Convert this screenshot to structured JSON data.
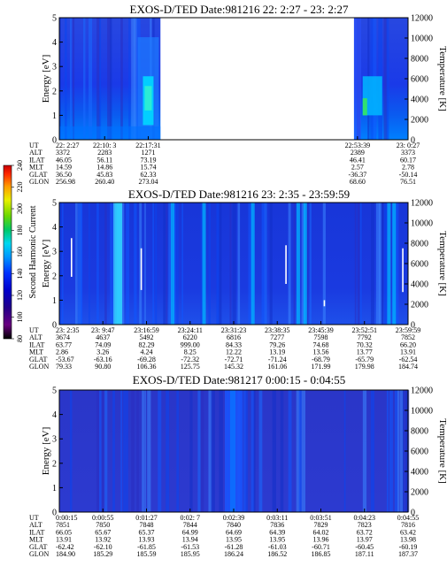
{
  "chart_data": [
    {
      "type": "heatmap",
      "title": "EXOS-D/TED   Date:981216  22: 2:27 - 23: 2:27",
      "ylabel": "Energy [eV]",
      "y2label": "Temperature [K]",
      "ylim": [
        0,
        5
      ],
      "y2lim": [
        0,
        12000
      ],
      "yticks": [
        "0",
        "1",
        "2",
        "3",
        "4",
        "5"
      ],
      "y2ticks": [
        "0",
        "2000",
        "4000",
        "6000",
        "8000",
        "10000",
        "12000"
      ],
      "data_gap": "no data between 22:27:04 and 22:53:39",
      "ephemeris_labels": [
        "UT",
        "ALT",
        "ILAT",
        "MLT",
        "GLAT",
        "GLON"
      ],
      "ephemeris_columns": [
        {
          "pos": 0.0,
          "UT": "22: 2:27",
          "ALT": "3372",
          "ILAT": "46.05",
          "MLT": "14.59",
          "GLAT": "36.50",
          "GLON": "256.98"
        },
        {
          "pos": 0.13,
          "UT": "22:10: 3",
          "ALT": "2283",
          "ILAT": "56.11",
          "MLT": "14.86",
          "GLAT": "45.83",
          "GLON": "260.40"
        },
        {
          "pos": 0.255,
          "UT": "22:17:31",
          "ALT": "1271",
          "ILAT": "73.19",
          "MLT": "15.74",
          "GLAT": "62.33",
          "GLON": "273.04"
        },
        {
          "pos": 0.855,
          "UT": "22:53:39",
          "ALT": "2389",
          "ILAT": "46.41",
          "MLT": "2.57",
          "GLAT": "-36.37",
          "GLON": "68.60"
        },
        {
          "pos": 1.0,
          "UT": "23: 0:27",
          "ALT": "3373",
          "ILAT": "60.17",
          "MLT": "2.78",
          "GLAT": "-50.14",
          "GLON": "76.51"
        }
      ],
      "data_segments": [
        {
          "from": 0.0,
          "to": 0.29
        },
        {
          "from": 0.845,
          "to": 1.0
        }
      ],
      "energy_profile": "intensity highest below 2 eV, enhanced patches near 1-2.5 eV around 22:17 and 22:58"
    },
    {
      "type": "heatmap",
      "title": "EXOS-D/TED   Date:981216  23: 2:35 - 23:59:59",
      "ylabel": "Energy [eV]",
      "y2label": "Temperature [K]",
      "ylim": [
        0,
        5
      ],
      "y2lim": [
        0,
        12000
      ],
      "yticks": [
        "0",
        "1",
        "2",
        "3",
        "4",
        "5"
      ],
      "y2ticks": [
        "0",
        "2000",
        "4000",
        "6000",
        "8000",
        "10000",
        "12000"
      ],
      "ephemeris_labels": [
        "UT",
        "ALT",
        "ILAT",
        "MLT",
        "GLAT",
        "GLON"
      ],
      "ephemeris_columns": [
        {
          "pos": 0.0,
          "UT": "23: 2:35",
          "ALT": "3674",
          "ILAT": "63.77",
          "MLT": "2.86",
          "GLAT": "-53.67",
          "GLON": "79.33"
        },
        {
          "pos": 0.125,
          "UT": "23: 9:47",
          "ALT": "4637",
          "ILAT": "74.09",
          "MLT": "3.26",
          "GLAT": "-63.16",
          "GLON": "90.80"
        },
        {
          "pos": 0.25,
          "UT": "23:16:59",
          "ALT": "5492",
          "ILAT": "82.29",
          "MLT": "4.24",
          "GLAT": "-69.28",
          "GLON": "106.36"
        },
        {
          "pos": 0.375,
          "UT": "23:24:11",
          "ALT": "6220",
          "ILAT": "999.00",
          "MLT": "8.25",
          "GLAT": "-72.32",
          "GLON": "125.75"
        },
        {
          "pos": 0.5,
          "UT": "23:31:23",
          "ALT": "6816",
          "ILAT": "84.33",
          "MLT": "12.22",
          "GLAT": "-72.71",
          "GLON": "145.32"
        },
        {
          "pos": 0.625,
          "UT": "23:38:35",
          "ALT": "7277",
          "ILAT": "79.26",
          "MLT": "13.19",
          "GLAT": "-71.24",
          "GLON": "161.06"
        },
        {
          "pos": 0.75,
          "UT": "23:45:39",
          "ALT": "7598",
          "ILAT": "74.68",
          "MLT": "13.56",
          "GLAT": "-68.79",
          "GLON": "171.99"
        },
        {
          "pos": 0.875,
          "UT": "23:52:51",
          "ALT": "7792",
          "ILAT": "70.32",
          "MLT": "13.77",
          "GLAT": "-65.79",
          "GLON": "179.98"
        },
        {
          "pos": 1.0,
          "UT": "23:59:59",
          "ALT": "7852",
          "ILAT": "66.20",
          "MLT": "13.91",
          "GLAT": "-62.54",
          "GLON": "184.74"
        }
      ],
      "temperature_markers": [
        {
          "pos": 0.035,
          "from_k": 4700,
          "to_k": 8500
        },
        {
          "pos": 0.235,
          "from_k": 3400,
          "to_k": 7500
        },
        {
          "pos": 0.65,
          "from_k": 4000,
          "to_k": 7800
        },
        {
          "pos": 0.76,
          "from_k": 1800,
          "to_k": 2400
        },
        {
          "pos": 0.985,
          "from_k": 3200,
          "to_k": 7500
        }
      ]
    },
    {
      "type": "heatmap",
      "title": "EXOS-D/TED   Date:981217  0:00:15 - 0:04:55",
      "ylabel": "Energy [eV]",
      "y2label": "Temperature [K]",
      "ylim": [
        0,
        5
      ],
      "y2lim": [
        0,
        12000
      ],
      "yticks": [
        "0",
        "1",
        "2",
        "3",
        "4",
        "5"
      ],
      "y2ticks": [
        "0",
        "2000",
        "4000",
        "6000",
        "8000",
        "10000",
        "12000"
      ],
      "ephemeris_labels": [
        "UT",
        "ALT",
        "ILAT",
        "MLT",
        "GLAT",
        "GLON"
      ],
      "ephemeris_columns": [
        {
          "pos": 0.0,
          "UT": "0:00:15",
          "ALT": "7851",
          "ILAT": "66.05",
          "MLT": "13.91",
          "GLAT": "-62.42",
          "GLON": "184.90"
        },
        {
          "pos": 0.125,
          "UT": "0:00:55",
          "ALT": "7850",
          "ILAT": "65.67",
          "MLT": "13.92",
          "GLAT": "-62.10",
          "GLON": "185.29"
        },
        {
          "pos": 0.25,
          "UT": "0:01:27",
          "ALT": "7848",
          "ILAT": "65.37",
          "MLT": "13.93",
          "GLAT": "-61.85",
          "GLON": "185.59"
        },
        {
          "pos": 0.375,
          "UT": "0:02: 7",
          "ALT": "7844",
          "ILAT": "64.99",
          "MLT": "13.94",
          "GLAT": "-61.53",
          "GLON": "185.95"
        },
        {
          "pos": 0.5,
          "UT": "0:02:39",
          "ALT": "7840",
          "ILAT": "64.69",
          "MLT": "13.95",
          "GLAT": "-61.28",
          "GLON": "186.24"
        },
        {
          "pos": 0.625,
          "UT": "0:03:11",
          "ALT": "7836",
          "ILAT": "64.39",
          "MLT": "13.95",
          "GLAT": "-61.03",
          "GLON": "186.52"
        },
        {
          "pos": 0.75,
          "UT": "0:03:51",
          "ALT": "7829",
          "ILAT": "64.02",
          "MLT": "13.96",
          "GLAT": "-60.71",
          "GLON": "186.85"
        },
        {
          "pos": 0.875,
          "UT": "0:04:23",
          "ALT": "7823",
          "ILAT": "63.72",
          "MLT": "13.97",
          "GLAT": "-60.45",
          "GLON": "187.11"
        },
        {
          "pos": 1.0,
          "UT": "0:04:55",
          "ALT": "7816",
          "ILAT": "63.42",
          "MLT": "13.98",
          "GLAT": "-60.19",
          "GLON": "187.37"
        }
      ]
    }
  ],
  "colorbar": {
    "label": "Second Harmonic Current",
    "ticks": [
      "240",
      "220",
      "200",
      "180",
      "160",
      "140",
      "120",
      "100",
      "80"
    ],
    "range": [
      80,
      240
    ],
    "colors": [
      "#000000",
      "#6a0080",
      "#22008a",
      "#0000cc",
      "#0032ff",
      "#0096ff",
      "#00d8f0",
      "#00c864",
      "#6cd800",
      "#e8f000",
      "#ff9a00",
      "#ff2800",
      "#c80000"
    ]
  }
}
